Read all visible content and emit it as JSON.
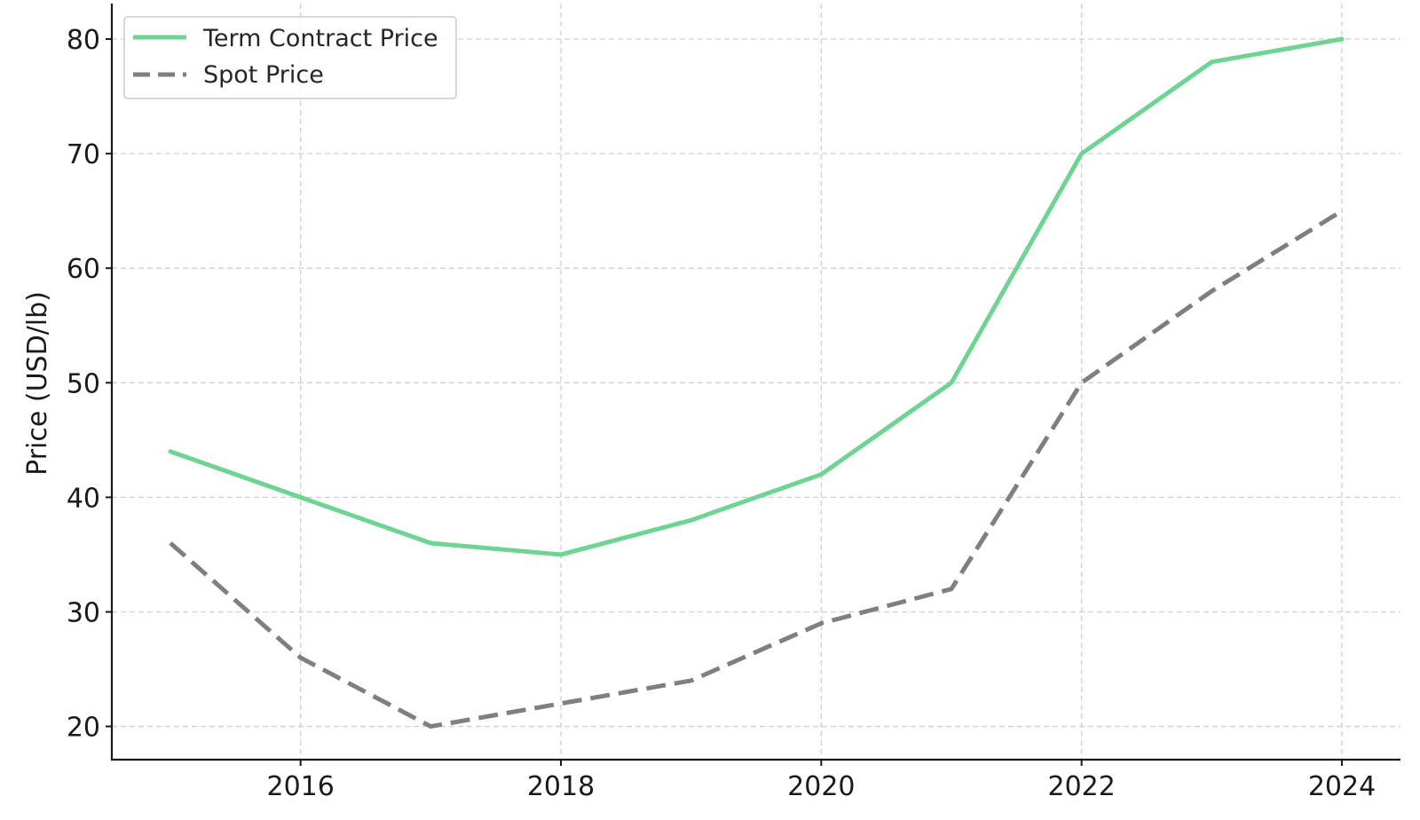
{
  "chart_data": {
    "type": "line",
    "title": "",
    "xlabel": "",
    "ylabel": "Price (USD/lb)",
    "x": [
      2015,
      2016,
      2017,
      2018,
      2019,
      2020,
      2021,
      2022,
      2023,
      2024
    ],
    "xticks": [
      "2016",
      "2018",
      "2020",
      "2022",
      "2024"
    ],
    "yticks": [
      "20",
      "30",
      "40",
      "50",
      "60",
      "70",
      "80"
    ],
    "xlim": [
      2014.55,
      2024.45
    ],
    "ylim": [
      17.1,
      83.1
    ],
    "grid": true,
    "legend_position": "top-left",
    "series": [
      {
        "name": "Term Contract Price",
        "color": "#6dd492",
        "style": "solid",
        "values": [
          44,
          40,
          36,
          35,
          38,
          42,
          50,
          70,
          78,
          80
        ]
      },
      {
        "name": "Spot Price",
        "color": "#7f7f7f",
        "style": "dashed",
        "values": [
          36,
          26,
          20,
          22,
          24,
          29,
          32,
          50,
          58,
          65
        ]
      }
    ]
  }
}
